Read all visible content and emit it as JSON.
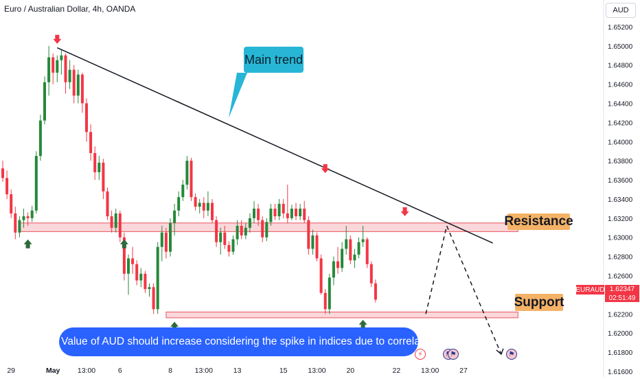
{
  "header": {
    "title": "Euro / Australian Dollar, 4h, OANDA",
    "currency_button": "AUD"
  },
  "annotations": {
    "main_trend": "Main trend",
    "resistance": "Resistance",
    "support": "Support",
    "note": "The Value of AUD should increase considering the spike in indices due to correlation"
  },
  "price_tag": {
    "symbol": "EURAUD",
    "price": "1.62347",
    "countdown": "02:51:49",
    "value": 1.62347
  },
  "colors": {
    "up": "#26883a",
    "down": "#f23645",
    "zone_fill": "#f8c9cd",
    "zone_border": "#e8555f",
    "arrow_up": "#2e6b3a",
    "arrow_down": "#f23645",
    "note_bg": "#2962ff",
    "callout_bg": "#27b6d6",
    "label_bg": "#f4b266"
  },
  "event_icons": [
    "lightning-icon",
    "flag-icon",
    "flag-icon",
    "flag-icon"
  ],
  "chart_data": {
    "type": "candlestick",
    "title": "Euro / Australian Dollar, 4h, OANDA",
    "x_ticks": [
      {
        "label": "29",
        "index": 2
      },
      {
        "label": "May",
        "index": 12
      },
      {
        "label": "13:00",
        "index": 20
      },
      {
        "label": "6",
        "index": 28
      },
      {
        "label": "8",
        "index": 40
      },
      {
        "label": "13:00",
        "index": 48
      },
      {
        "label": "13",
        "index": 56
      },
      {
        "label": "15",
        "index": 67
      },
      {
        "label": "13:00",
        "index": 75
      },
      {
        "label": "20",
        "index": 83
      },
      {
        "label": "22",
        "index": 94
      },
      {
        "label": "13:00",
        "index": 102
      },
      {
        "label": "27",
        "index": 110
      }
    ],
    "y_ticks": [
      1.652,
      1.65,
      1.648,
      1.646,
      1.644,
      1.642,
      1.64,
      1.638,
      1.636,
      1.634,
      1.632,
      1.63,
      1.628,
      1.626,
      1.624,
      1.622,
      1.62,
      1.618,
      1.616
    ],
    "ylim": [
      1.6155,
      1.6545
    ],
    "x_index_range": [
      0,
      124
    ],
    "ohlc": [
      [
        1.6372,
        1.638,
        1.6358,
        1.6362
      ],
      [
        1.6362,
        1.637,
        1.634,
        1.6345
      ],
      [
        1.6345,
        1.635,
        1.632,
        1.6325
      ],
      [
        1.6325,
        1.6332,
        1.6298,
        1.6305
      ],
      [
        1.6305,
        1.6322,
        1.63,
        1.6318
      ],
      [
        1.6318,
        1.633,
        1.631,
        1.6322
      ],
      [
        1.6322,
        1.6326,
        1.6312,
        1.632
      ],
      [
        1.632,
        1.6333,
        1.6316,
        1.6328
      ],
      [
        1.6328,
        1.639,
        1.6325,
        1.6385
      ],
      [
        1.6385,
        1.6428,
        1.638,
        1.6422
      ],
      [
        1.6422,
        1.6468,
        1.6418,
        1.6462
      ],
      [
        1.6462,
        1.65,
        1.6448,
        1.6488
      ],
      [
        1.6488,
        1.6492,
        1.646,
        1.6472
      ],
      [
        1.6472,
        1.649,
        1.6462,
        1.6485
      ],
      [
        1.6485,
        1.6496,
        1.647,
        1.649
      ],
      [
        1.649,
        1.6492,
        1.645,
        1.6462
      ],
      [
        1.6462,
        1.6485,
        1.6455,
        1.6475
      ],
      [
        1.6475,
        1.648,
        1.644,
        1.6448
      ],
      [
        1.6448,
        1.6475,
        1.644,
        1.647
      ],
      [
        1.647,
        1.6472,
        1.643,
        1.644
      ],
      [
        1.644,
        1.6445,
        1.64,
        1.641
      ],
      [
        1.641,
        1.6418,
        1.638,
        1.6388
      ],
      [
        1.6388,
        1.6395,
        1.636,
        1.6368
      ],
      [
        1.6368,
        1.6385,
        1.636,
        1.6378
      ],
      [
        1.6378,
        1.6382,
        1.634,
        1.6348
      ],
      [
        1.6348,
        1.6352,
        1.6318,
        1.6322
      ],
      [
        1.6322,
        1.6328,
        1.6305,
        1.631
      ],
      [
        1.631,
        1.633,
        1.6305,
        1.6325
      ],
      [
        1.6325,
        1.6328,
        1.6295,
        1.63
      ],
      [
        1.63,
        1.6305,
        1.6255,
        1.6262
      ],
      [
        1.6262,
        1.6282,
        1.624,
        1.6278
      ],
      [
        1.6278,
        1.629,
        1.6262,
        1.6272
      ],
      [
        1.6272,
        1.6276,
        1.625,
        1.6255
      ],
      [
        1.6255,
        1.6268,
        1.6248,
        1.6262
      ],
      [
        1.6262,
        1.6265,
        1.6242,
        1.6246
      ],
      [
        1.6246,
        1.6252,
        1.6238,
        1.6248
      ],
      [
        1.6248,
        1.6252,
        1.622,
        1.6225
      ],
      [
        1.6225,
        1.6295,
        1.622,
        1.629
      ],
      [
        1.629,
        1.6312,
        1.6275,
        1.6305
      ],
      [
        1.6305,
        1.631,
        1.6278,
        1.6285
      ],
      [
        1.6285,
        1.632,
        1.628,
        1.6315
      ],
      [
        1.6315,
        1.6335,
        1.6302,
        1.6328
      ],
      [
        1.6328,
        1.6348,
        1.6322,
        1.6342
      ],
      [
        1.6342,
        1.636,
        1.6338,
        1.6355
      ],
      [
        1.6355,
        1.6385,
        1.635,
        1.638
      ],
      [
        1.638,
        1.6383,
        1.6338,
        1.6342
      ],
      [
        1.6342,
        1.6346,
        1.6328,
        1.6332
      ],
      [
        1.6332,
        1.634,
        1.6325,
        1.6336
      ],
      [
        1.6336,
        1.6342,
        1.632,
        1.6328
      ],
      [
        1.6328,
        1.6348,
        1.6322,
        1.6336
      ],
      [
        1.6336,
        1.634,
        1.6315,
        1.6318
      ],
      [
        1.6318,
        1.6322,
        1.629,
        1.6295
      ],
      [
        1.6295,
        1.631,
        1.6282,
        1.6305
      ],
      [
        1.6305,
        1.6312,
        1.6288,
        1.6292
      ],
      [
        1.6292,
        1.6296,
        1.628,
        1.6285
      ],
      [
        1.6285,
        1.6302,
        1.6282,
        1.6298
      ],
      [
        1.6298,
        1.6318,
        1.6292,
        1.6312
      ],
      [
        1.6312,
        1.6318,
        1.6298,
        1.6302
      ],
      [
        1.6302,
        1.6315,
        1.6298,
        1.631
      ],
      [
        1.631,
        1.6325,
        1.6305,
        1.632
      ],
      [
        1.632,
        1.6338,
        1.6315,
        1.633
      ],
      [
        1.633,
        1.6335,
        1.6312,
        1.6318
      ],
      [
        1.6318,
        1.6322,
        1.6295,
        1.63
      ],
      [
        1.63,
        1.632,
        1.6296,
        1.6316
      ],
      [
        1.6316,
        1.6335,
        1.6312,
        1.633
      ],
      [
        1.633,
        1.6335,
        1.6318,
        1.6322
      ],
      [
        1.6322,
        1.634,
        1.6318,
        1.6335
      ],
      [
        1.6335,
        1.634,
        1.632,
        1.6325
      ],
      [
        1.6325,
        1.6355,
        1.6315,
        1.632
      ],
      [
        1.632,
        1.6334,
        1.6318,
        1.633
      ],
      [
        1.633,
        1.6336,
        1.6318,
        1.6322
      ],
      [
        1.6322,
        1.6335,
        1.6318,
        1.633
      ],
      [
        1.633,
        1.6338,
        1.6315,
        1.6318
      ],
      [
        1.6318,
        1.6322,
        1.6282,
        1.6288
      ],
      [
        1.6288,
        1.6308,
        1.6282,
        1.6302
      ],
      [
        1.6302,
        1.6305,
        1.6275,
        1.6278
      ],
      [
        1.6278,
        1.6282,
        1.624,
        1.6242
      ],
      [
        1.6242,
        1.6246,
        1.622,
        1.6225
      ],
      [
        1.6225,
        1.6262,
        1.622,
        1.6258
      ],
      [
        1.6258,
        1.628,
        1.625,
        1.6275
      ],
      [
        1.6275,
        1.629,
        1.6262,
        1.6268
      ],
      [
        1.6268,
        1.6295,
        1.6264,
        1.6288
      ],
      [
        1.6288,
        1.6312,
        1.6282,
        1.6298
      ],
      [
        1.6298,
        1.6302,
        1.6272,
        1.6276
      ],
      [
        1.6276,
        1.6288,
        1.6268,
        1.6282
      ],
      [
        1.6282,
        1.63,
        1.6278,
        1.6295
      ],
      [
        1.6295,
        1.6312,
        1.629,
        1.6298
      ],
      [
        1.6298,
        1.63,
        1.6268,
        1.6272
      ],
      [
        1.6272,
        1.6275,
        1.6248,
        1.6252
      ],
      [
        1.6252,
        1.6256,
        1.6232,
        1.6235
      ]
    ],
    "resistance_zone": [
      1.6306,
      1.6315
    ],
    "support_zone": [
      1.6216,
      1.6222
    ],
    "trendline": {
      "from": [
        13,
        1.6498
      ],
      "to": [
        117,
        1.6294
      ]
    },
    "projection_path": [
      [
        101,
        1.622
      ],
      [
        106,
        1.6312
      ],
      [
        119,
        1.6178
      ]
    ],
    "down_markers": [
      [
        13,
        1.65
      ],
      [
        77,
        1.6365
      ],
      [
        96,
        1.632
      ]
    ],
    "up_markers": [
      [
        6,
        1.63
      ],
      [
        29,
        1.63
      ],
      [
        41,
        1.6214
      ],
      [
        86,
        1.6216
      ]
    ],
    "event_markers": [
      97,
      104,
      105,
      119
    ],
    "current_price": 1.62347
  }
}
